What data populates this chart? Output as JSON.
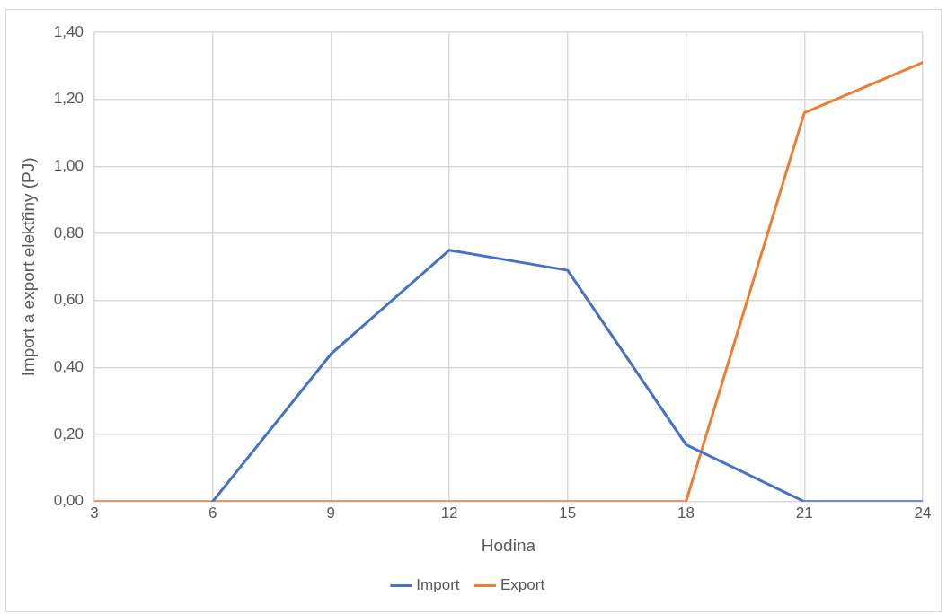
{
  "chart_data": {
    "type": "line",
    "xlabel": "Hodina",
    "ylabel": "Import a export elektřiny (PJ)",
    "x": [
      3,
      6,
      9,
      12,
      15,
      18,
      21,
      24
    ],
    "series": [
      {
        "name": "Import",
        "color": "#4472c4",
        "values": [
          null,
          0,
          0.44,
          0.75,
          0.69,
          0.17,
          0,
          0
        ]
      },
      {
        "name": "Export",
        "color": "#ed7d31",
        "values": [
          0,
          0,
          0,
          0,
          0,
          0,
          1.16,
          1.31
        ]
      }
    ],
    "xlim": [
      3,
      24
    ],
    "xticks": [
      3,
      6,
      9,
      12,
      15,
      18,
      21,
      24
    ],
    "ylim": [
      0,
      1.4
    ],
    "yticks": [
      {
        "value": 0,
        "label": "0,00"
      },
      {
        "value": 0.2,
        "label": "0,20"
      },
      {
        "value": 0.4,
        "label": "0,40"
      },
      {
        "value": 0.6,
        "label": "0,60"
      },
      {
        "value": 0.8,
        "label": "0,80"
      },
      {
        "value": 1,
        "label": "1,00"
      },
      {
        "value": 1.2,
        "label": "1,20"
      },
      {
        "value": 1.4,
        "label": "1,40"
      }
    ],
    "grid": true,
    "legend": "bottom",
    "marker": "none",
    "line_style": "solid"
  }
}
